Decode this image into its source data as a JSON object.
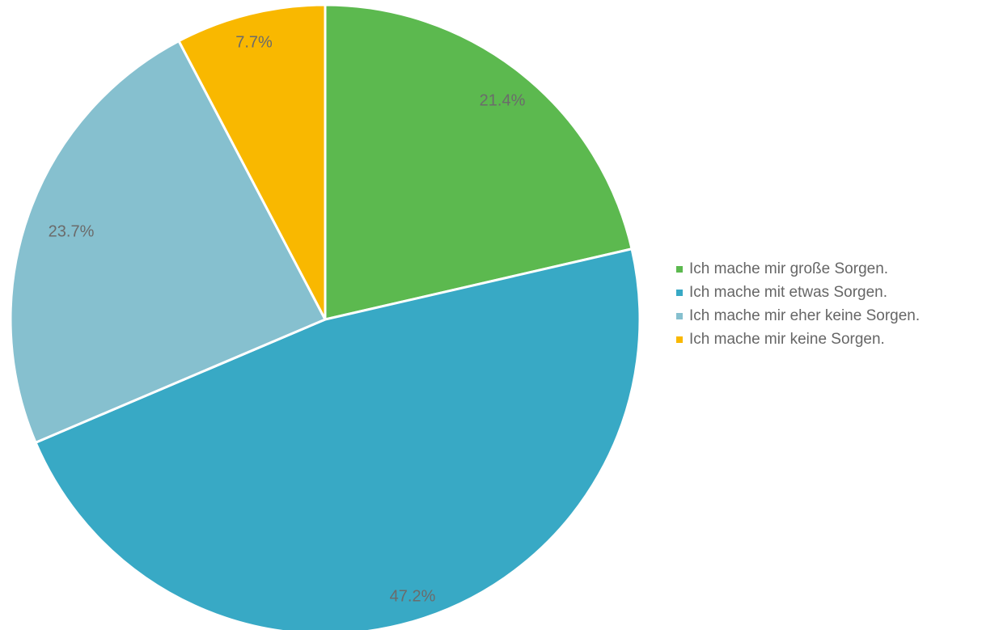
{
  "chart_data": {
    "type": "pie",
    "title": "",
    "slices": [
      {
        "label": "Ich mache mir große Sorgen.",
        "value": 21.4,
        "display": "21.4%",
        "color": "#5cb94f"
      },
      {
        "label": "Ich mache mit etwas Sorgen.",
        "value": 47.2,
        "display": "47.2%",
        "color": "#38a9c5"
      },
      {
        "label": "Ich mache mir eher keine Sorgen.",
        "value": 23.7,
        "display": "23.7%",
        "color": "#86c0cf"
      },
      {
        "label": "Ich mache mir keine Sorgen.",
        "value": 7.7,
        "display": "7.7%",
        "color": "#f9b800"
      }
    ],
    "start_angle": "12 o'clock",
    "direction": "clockwise",
    "legend_position": "right",
    "separator_color": "#ffffff"
  }
}
